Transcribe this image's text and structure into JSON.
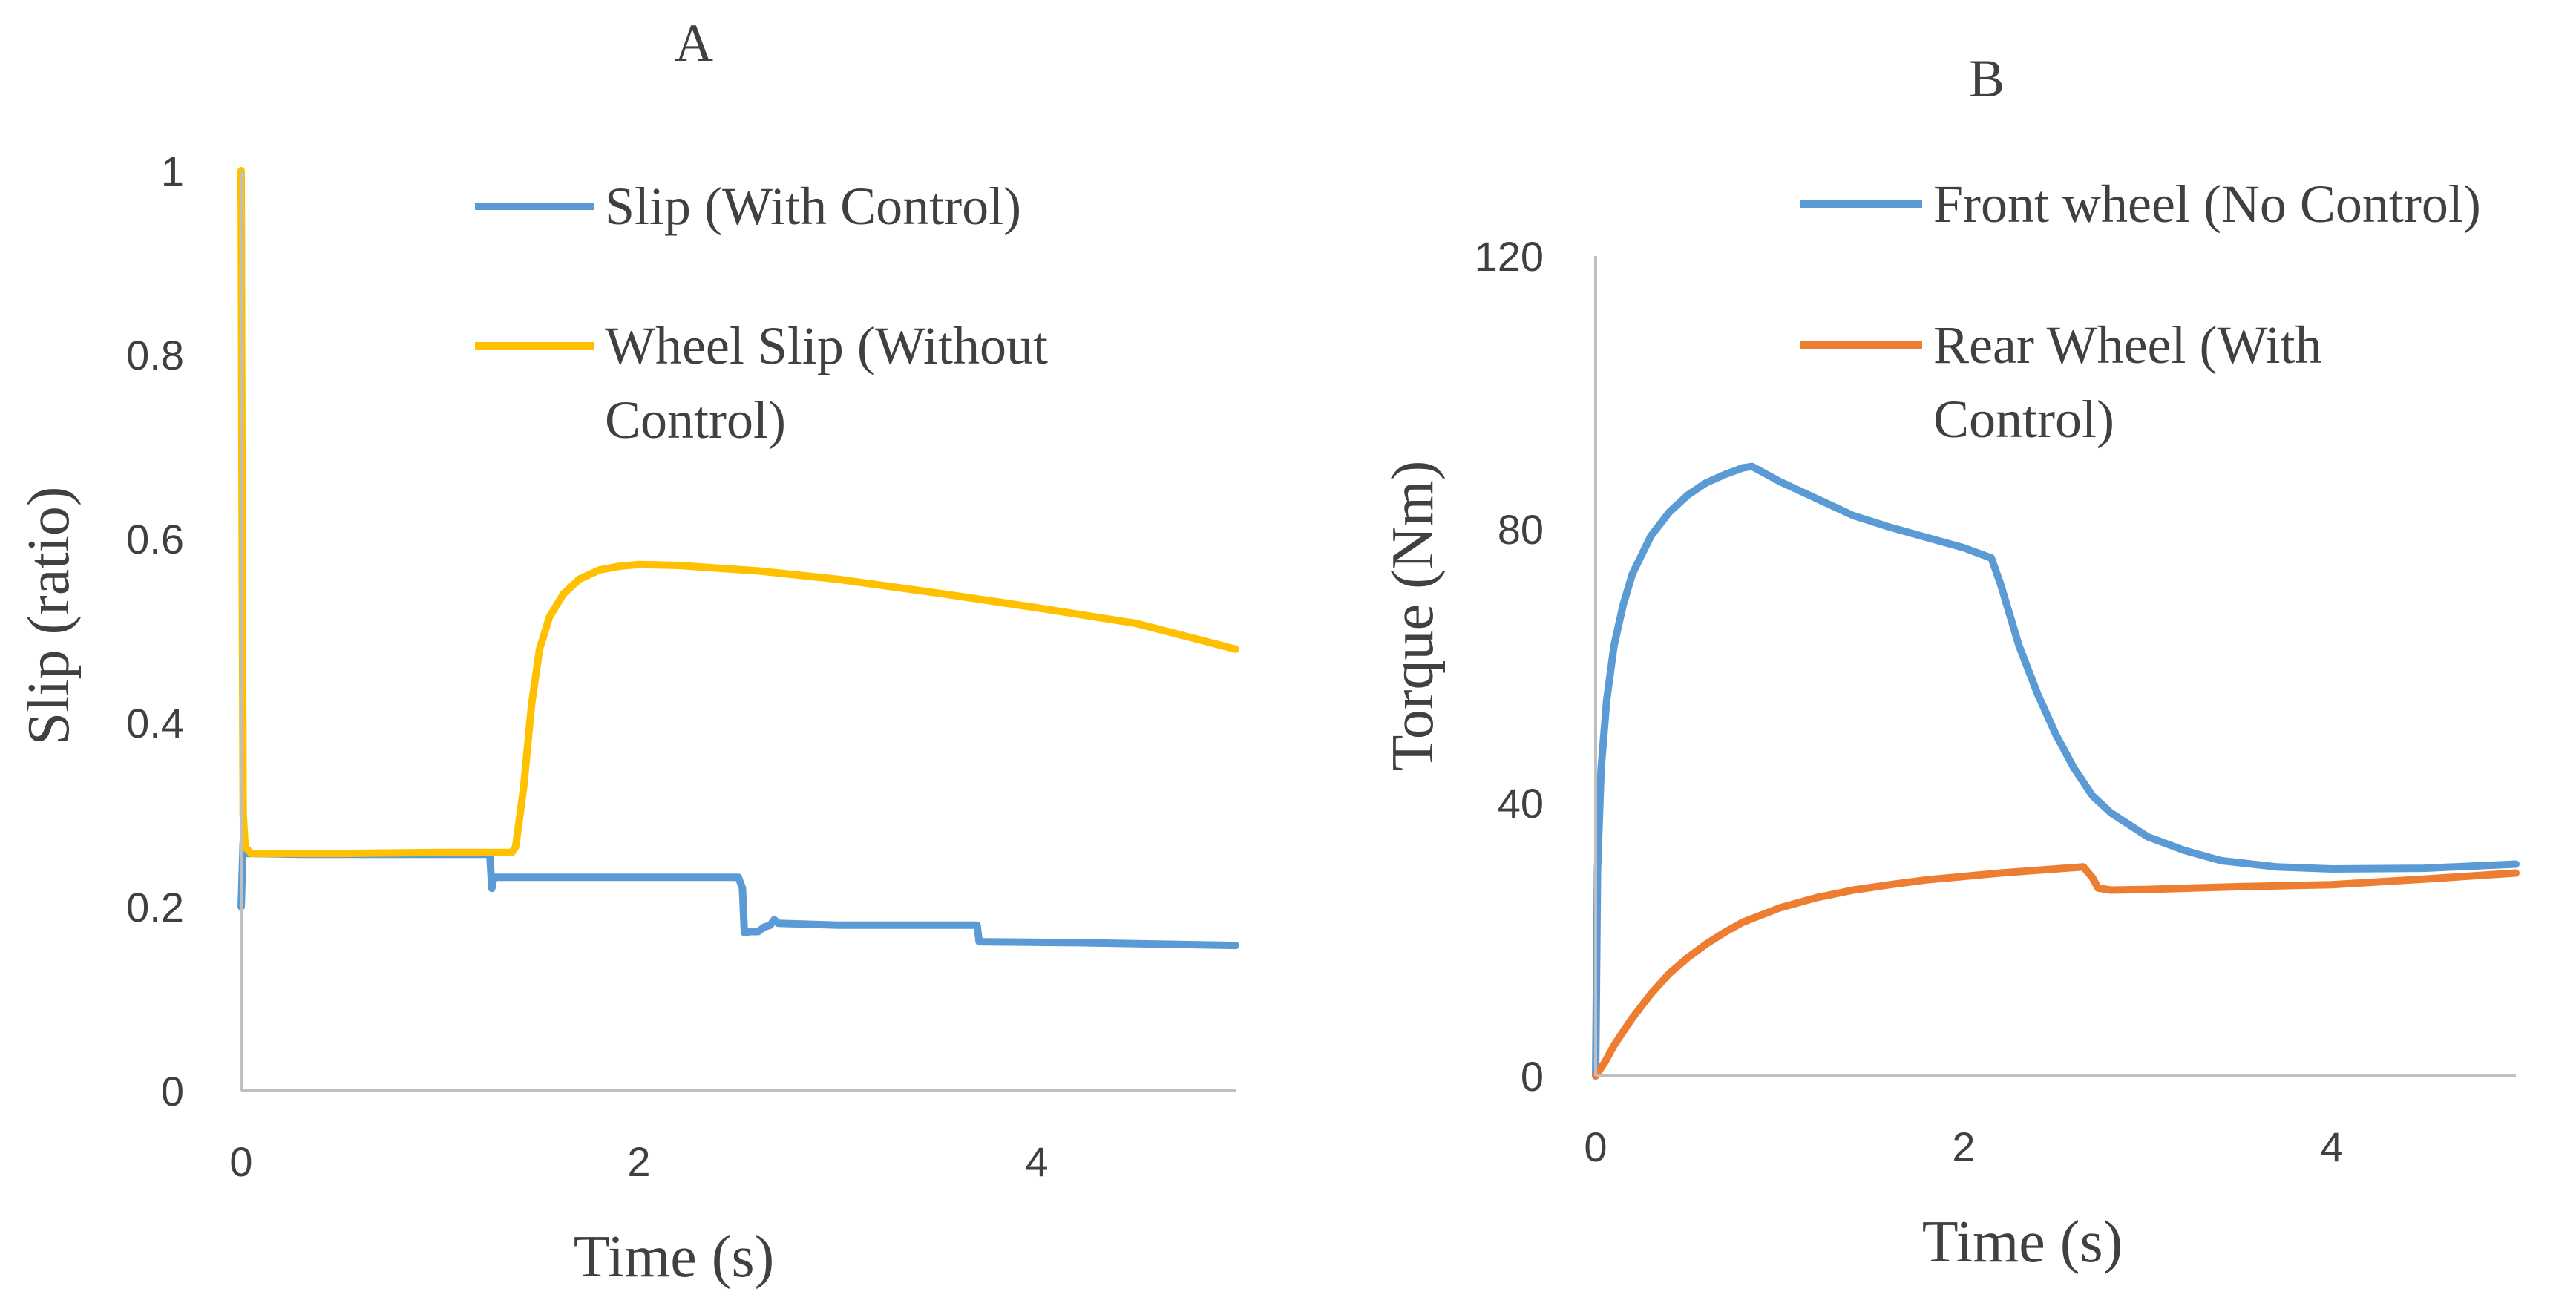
{
  "chart_data": [
    {
      "type": "line",
      "panel_label": "A",
      "xlabel": "Time (s)",
      "ylabel": "Slip (ratio)",
      "xlim": [
        0,
        5
      ],
      "ylim": [
        0,
        1
      ],
      "x_ticks": [
        "0",
        "2",
        "4"
      ],
      "y_ticks": [
        "0",
        "0.2",
        "0.4",
        "0.6",
        "0.8",
        "1"
      ],
      "grid": false,
      "legend_position": "top-right",
      "series": [
        {
          "name": "Slip (With Control)",
          "legend_lines": [
            "Slip (With Control)"
          ],
          "color": "#5b9bd5",
          "points": [
            [
              0,
              0.2
            ],
            [
              0.01,
              0.27
            ],
            [
              0.03,
              0.258
            ],
            [
              0.3,
              0.257
            ],
            [
              1.2,
              0.257
            ],
            [
              1.25,
              0.257
            ],
            [
              1.26,
              0.22
            ],
            [
              1.27,
              0.232
            ],
            [
              1.5,
              0.232
            ],
            [
              2.5,
              0.232
            ],
            [
              2.52,
              0.22
            ],
            [
              2.53,
              0.172
            ],
            [
              2.56,
              0.173
            ],
            [
              2.6,
              0.173
            ],
            [
              2.63,
              0.178
            ],
            [
              2.66,
              0.18
            ],
            [
              2.68,
              0.186
            ],
            [
              2.7,
              0.182
            ],
            [
              3.0,
              0.18
            ],
            [
              3.7,
              0.18
            ],
            [
              3.71,
              0.162
            ],
            [
              4.2,
              0.161
            ],
            [
              5.0,
              0.158
            ]
          ]
        },
        {
          "name": "Wheel Slip (Without Control)",
          "legend_lines": [
            "Wheel Slip (Without",
            "Control)"
          ],
          "color": "#ffc000",
          "points": [
            [
              0,
              1.0
            ],
            [
              0.005,
              0.6
            ],
            [
              0.01,
              0.3
            ],
            [
              0.02,
              0.265
            ],
            [
              0.05,
              0.258
            ],
            [
              0.5,
              0.258
            ],
            [
              1.0,
              0.259
            ],
            [
              1.36,
              0.259
            ],
            [
              1.38,
              0.265
            ],
            [
              1.42,
              0.33
            ],
            [
              1.46,
              0.42
            ],
            [
              1.5,
              0.48
            ],
            [
              1.55,
              0.515
            ],
            [
              1.62,
              0.54
            ],
            [
              1.7,
              0.556
            ],
            [
              1.8,
              0.566
            ],
            [
              1.9,
              0.57
            ],
            [
              2.0,
              0.572
            ],
            [
              2.2,
              0.571
            ],
            [
              2.6,
              0.565
            ],
            [
              3.0,
              0.556
            ],
            [
              3.5,
              0.541
            ],
            [
              4.0,
              0.525
            ],
            [
              4.5,
              0.508
            ],
            [
              5.0,
              0.48
            ]
          ]
        }
      ]
    },
    {
      "type": "line",
      "panel_label": "B",
      "xlabel": "Time (s)",
      "ylabel": "Torque (Nm)",
      "xlim": [
        0,
        5
      ],
      "ylim": [
        0,
        120
      ],
      "x_ticks": [
        "0",
        "2",
        "4"
      ],
      "y_ticks": [
        "0",
        "40",
        "80",
        "120"
      ],
      "grid": false,
      "legend_position": "top-right",
      "series": [
        {
          "name": "Front wheel (No Control)",
          "legend_lines": [
            "Front wheel (No Control)"
          ],
          "color": "#5b9bd5",
          "points": [
            [
              0,
              0
            ],
            [
              0.01,
              30
            ],
            [
              0.03,
              45
            ],
            [
              0.06,
              55
            ],
            [
              0.1,
              63
            ],
            [
              0.15,
              69
            ],
            [
              0.2,
              73.5
            ],
            [
              0.3,
              79
            ],
            [
              0.4,
              82.5
            ],
            [
              0.5,
              85
            ],
            [
              0.6,
              86.8
            ],
            [
              0.7,
              88
            ],
            [
              0.8,
              89
            ],
            [
              0.85,
              89.2
            ],
            [
              1.0,
              87
            ],
            [
              1.2,
              84.5
            ],
            [
              1.4,
              82
            ],
            [
              1.6,
              80.3
            ],
            [
              1.8,
              78.8
            ],
            [
              2.0,
              77.3
            ],
            [
              2.15,
              75.8
            ],
            [
              2.2,
              72
            ],
            [
              2.3,
              63
            ],
            [
              2.4,
              56
            ],
            [
              2.5,
              50
            ],
            [
              2.6,
              45
            ],
            [
              2.7,
              41
            ],
            [
              2.8,
              38.5
            ],
            [
              3.0,
              35
            ],
            [
              3.2,
              33
            ],
            [
              3.4,
              31.5
            ],
            [
              3.7,
              30.6
            ],
            [
              4.0,
              30.3
            ],
            [
              4.5,
              30.4
            ],
            [
              5.0,
              31
            ]
          ]
        },
        {
          "name": "Rear Wheel (With Control)",
          "legend_lines": [
            "Rear Wheel (With",
            "Control)"
          ],
          "color": "#ed7d31",
          "points": [
            [
              0,
              0
            ],
            [
              0.05,
              2
            ],
            [
              0.1,
              4.5
            ],
            [
              0.2,
              8.5
            ],
            [
              0.3,
              12
            ],
            [
              0.4,
              15
            ],
            [
              0.5,
              17.3
            ],
            [
              0.6,
              19.3
            ],
            [
              0.7,
              21
            ],
            [
              0.8,
              22.5
            ],
            [
              1.0,
              24.6
            ],
            [
              1.2,
              26.1
            ],
            [
              1.4,
              27.2
            ],
            [
              1.6,
              28
            ],
            [
              1.8,
              28.7
            ],
            [
              2.0,
              29.2
            ],
            [
              2.2,
              29.7
            ],
            [
              2.4,
              30.1
            ],
            [
              2.6,
              30.5
            ],
            [
              2.65,
              30.6
            ],
            [
              2.7,
              29
            ],
            [
              2.73,
              27.5
            ],
            [
              2.8,
              27.2
            ],
            [
              3.0,
              27.3
            ],
            [
              3.5,
              27.7
            ],
            [
              4.0,
              28
            ],
            [
              4.5,
              28.8
            ],
            [
              5.0,
              29.7
            ]
          ]
        }
      ]
    }
  ]
}
